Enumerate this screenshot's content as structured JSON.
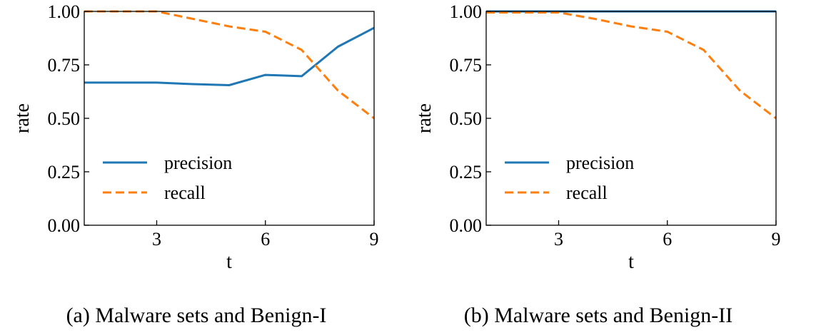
{
  "chart_data": [
    {
      "type": "line",
      "caption": "(a) Malware sets and Benign-I",
      "xlabel": "t",
      "ylabel": "rate",
      "xlim": [
        1,
        9
      ],
      "ylim": [
        0,
        1
      ],
      "xticks": [
        3,
        6,
        9
      ],
      "yticks": [
        "0.00",
        "0.25",
        "0.50",
        "0.75",
        "1.00"
      ],
      "grid": false,
      "legend_position": "lower-left",
      "x": [
        1,
        2,
        3,
        4,
        5,
        6,
        7,
        8,
        9
      ],
      "series": [
        {
          "name": "precision",
          "color": "#1f77b4",
          "style": "solid",
          "values": [
            0.667,
            0.667,
            0.667,
            0.66,
            0.655,
            0.703,
            0.697,
            0.835,
            0.923
          ]
        },
        {
          "name": "recall",
          "color": "#ff7f0e",
          "style": "dashed",
          "values": [
            1.0,
            1.0,
            1.0,
            0.965,
            0.93,
            0.905,
            0.82,
            0.63,
            0.5
          ]
        }
      ]
    },
    {
      "type": "line",
      "caption": "(b) Malware sets and Benign-II",
      "xlabel": "t",
      "ylabel": "rate",
      "xlim": [
        1,
        9
      ],
      "ylim": [
        0,
        1
      ],
      "xticks": [
        3,
        6,
        9
      ],
      "yticks": [
        "0.00",
        "0.25",
        "0.50",
        "0.75",
        "1.00"
      ],
      "grid": false,
      "legend_position": "lower-left",
      "x": [
        1,
        2,
        3,
        4,
        5,
        6,
        7,
        8,
        9
      ],
      "series": [
        {
          "name": "precision",
          "color": "#1f77b4",
          "style": "solid",
          "values": [
            1.0,
            1.0,
            1.0,
            1.0,
            1.0,
            1.0,
            1.0,
            1.0,
            1.0
          ]
        },
        {
          "name": "recall",
          "color": "#ff7f0e",
          "style": "dashed",
          "values": [
            0.995,
            0.995,
            0.995,
            0.965,
            0.93,
            0.905,
            0.82,
            0.63,
            0.5
          ]
        }
      ]
    }
  ]
}
